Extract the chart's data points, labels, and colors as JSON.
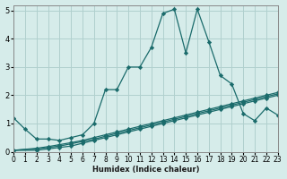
{
  "bg_color": "#d6ecea",
  "grid_color": "#b0d0ce",
  "line_color": "#1a6b6b",
  "marker_color": "#1a6b6b",
  "xlabel": "Humidex (Indice chaleur)",
  "xlim": [
    0,
    23
  ],
  "ylim": [
    0,
    5.2
  ],
  "yticks": [
    0,
    1,
    2,
    3,
    4,
    5
  ],
  "xtick_labels": [
    "0",
    "1",
    "2",
    "3",
    "4",
    "5",
    "6",
    "7",
    "8",
    "9",
    "10",
    "11",
    "12",
    "13",
    "14",
    "15",
    "16",
    "17",
    "18",
    "19",
    "20",
    "21",
    "22",
    "23"
  ],
  "lines": [
    {
      "x": [
        0,
        1,
        2,
        3,
        4,
        5,
        6,
        7,
        8,
        9,
        10,
        11,
        12,
        13,
        14,
        15,
        16,
        17,
        18,
        19,
        20,
        21,
        22,
        23
      ],
      "y": [
        1.2,
        0.8,
        0.45,
        0.45,
        0.4,
        0.5,
        0.6,
        1.0,
        2.2,
        2.2,
        3.0,
        3.0,
        3.7,
        4.9,
        5.05,
        3.5,
        5.05,
        3.9,
        2.7,
        2.4,
        1.35,
        1.1,
        1.55,
        1.3
      ]
    },
    {
      "x": [
        0,
        2,
        3,
        4,
        5,
        6,
        7,
        8,
        9,
        10,
        11,
        12,
        13,
        14,
        15,
        16,
        17,
        18,
        19,
        20,
        21,
        22,
        23
      ],
      "y": [
        0.05,
        0.05,
        0.1,
        0.15,
        0.2,
        0.3,
        0.4,
        0.5,
        0.6,
        0.7,
        0.8,
        0.9,
        1.0,
        1.1,
        1.2,
        1.3,
        1.4,
        1.5,
        1.6,
        1.7,
        1.8,
        1.9,
        2.0
      ]
    },
    {
      "x": [
        0,
        2,
        3,
        4,
        5,
        6,
        7,
        8,
        9,
        10,
        11,
        12,
        13,
        14,
        15,
        16,
        17,
        18,
        19,
        20,
        21,
        22,
        23
      ],
      "y": [
        0.05,
        0.1,
        0.15,
        0.2,
        0.28,
        0.36,
        0.44,
        0.55,
        0.65,
        0.75,
        0.85,
        0.95,
        1.05,
        1.15,
        1.25,
        1.35,
        1.45,
        1.55,
        1.65,
        1.75,
        1.85,
        1.95,
        2.05
      ]
    },
    {
      "x": [
        0,
        2,
        3,
        4,
        5,
        6,
        7,
        8,
        9,
        10,
        11,
        12,
        13,
        14,
        15,
        16,
        17,
        18,
        19,
        20,
        21,
        22,
        23
      ],
      "y": [
        0.05,
        0.12,
        0.18,
        0.25,
        0.32,
        0.4,
        0.5,
        0.6,
        0.7,
        0.8,
        0.9,
        1.0,
        1.1,
        1.2,
        1.3,
        1.4,
        1.5,
        1.6,
        1.7,
        1.8,
        1.9,
        2.0,
        2.1
      ]
    }
  ]
}
